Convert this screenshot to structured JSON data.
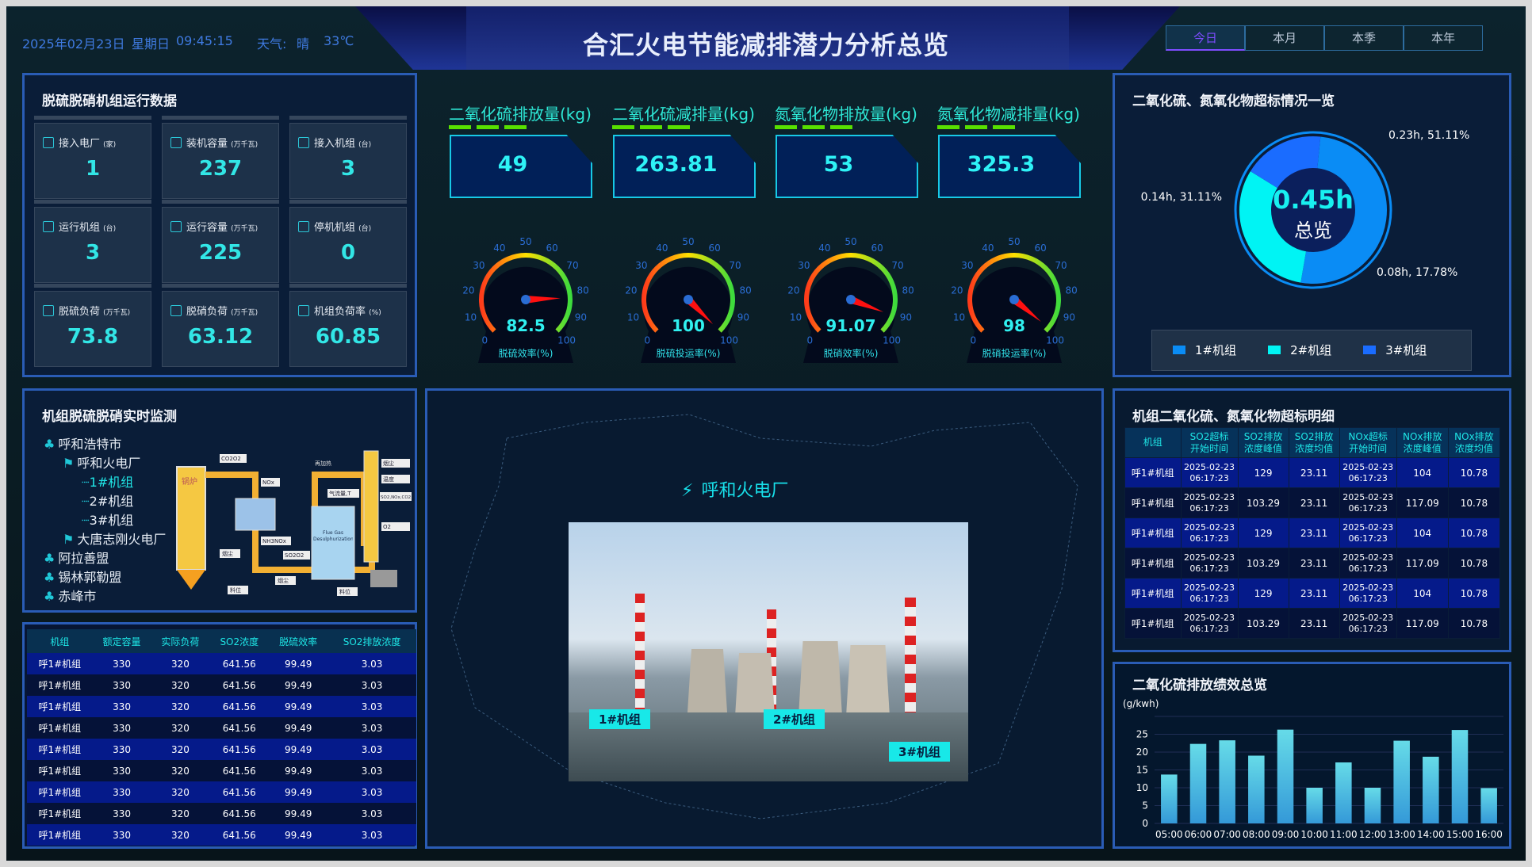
{
  "header": {
    "date": "2025年02月23日",
    "weekday": "星期日",
    "time": "09:45:15",
    "weather_label": "天气:",
    "weather": "晴",
    "temperature": "33℃",
    "title": "合汇火电节能减排潜力分析总览",
    "tabs": [
      {
        "label": "今日",
        "active": true
      },
      {
        "label": "本月"
      },
      {
        "label": "本季"
      },
      {
        "label": "本年"
      }
    ]
  },
  "unit_panel": {
    "title": "脱硫脱硝机组运行数据",
    "cards": [
      {
        "label": "接入电厂",
        "unit": "(家)",
        "value": "1",
        "icon": "plant-icon"
      },
      {
        "label": "装机容量",
        "unit": "(万千瓦)",
        "value": "237",
        "icon": "battery-icon"
      },
      {
        "label": "接入机组",
        "unit": "(台)",
        "value": "3",
        "icon": "generator-icon"
      },
      {
        "label": "运行机组",
        "unit": "(台)",
        "value": "3",
        "icon": "generator-icon"
      },
      {
        "label": "运行容量",
        "unit": "(万千瓦)",
        "value": "225",
        "icon": "battery-icon"
      },
      {
        "label": "停机机组",
        "unit": "(台)",
        "value": "0",
        "icon": "generator-off-icon"
      },
      {
        "label": "脱硫负荷",
        "unit": "(万千瓦)",
        "value": "73.8",
        "icon": "line-chart-icon"
      },
      {
        "label": "脱硝负荷",
        "unit": "(万千瓦)",
        "value": "63.12",
        "icon": "monitor-icon"
      },
      {
        "label": "机组负荷率",
        "unit": "(%)",
        "value": "60.85",
        "icon": "gauge-icon"
      }
    ]
  },
  "kpis": [
    {
      "label": "二氧化硫排放量(kg)",
      "value": "49"
    },
    {
      "label": "二氧化硫减排量(kg)",
      "value": "263.81"
    },
    {
      "label": "氮氧化物排放量(kg)",
      "value": "53"
    },
    {
      "label": "氮氧化物减排量(kg)",
      "value": "325.3"
    }
  ],
  "gauges": [
    {
      "label": "脱硫效率(%)",
      "value": 82.5,
      "display": "82.5"
    },
    {
      "label": "脱硫投运率(%)",
      "value": 100,
      "display": "100"
    },
    {
      "label": "脱硝效率(%)",
      "value": 91.07,
      "display": "91.07"
    },
    {
      "label": "脱硝投运率(%)",
      "value": 98,
      "display": "98"
    }
  ],
  "gauge_ticks": [
    "0",
    "10",
    "20",
    "30",
    "40",
    "50",
    "60",
    "70",
    "80",
    "90",
    "100"
  ],
  "monitor": {
    "title": "机组脱硫脱硝实时监测",
    "tree": [
      {
        "label": "呼和浩特市",
        "level": 0
      },
      {
        "label": "呼和火电厂",
        "level": 1
      },
      {
        "label": "1#机组",
        "level": 2,
        "selected": true
      },
      {
        "label": "2#机组",
        "level": 2
      },
      {
        "label": "3#机组",
        "level": 2
      },
      {
        "label": "大唐志刚火电厂",
        "level": 1
      },
      {
        "label": "阿拉善盟",
        "level": 0
      },
      {
        "label": "锡林郭勒盟",
        "level": 0
      },
      {
        "label": "赤峰市",
        "level": 0
      }
    ],
    "diagram": {
      "boiler": "锅炉",
      "labels": [
        "CO2O2",
        "NOx",
        "NH3NOx",
        "烟尘",
        "SO2O2",
        "烟尘",
        "料位",
        "料位",
        "再加热",
        "Flue Gas Desulphurization",
        "气流量,T",
        "烟尘",
        "温度",
        "SO2,NOx,CO2",
        "O2"
      ]
    }
  },
  "unit_table": {
    "columns": [
      "机组",
      "额定容量",
      "实际负荷",
      "SO2浓度",
      "脱硫效率",
      "SO2排放浓度"
    ],
    "rows": [
      [
        "呼1#机组",
        "330",
        "320",
        "641.56",
        "99.49",
        "3.03"
      ],
      [
        "呼1#机组",
        "330",
        "320",
        "641.56",
        "99.49",
        "3.03"
      ],
      [
        "呼1#机组",
        "330",
        "320",
        "641.56",
        "99.49",
        "3.03"
      ],
      [
        "呼1#机组",
        "330",
        "320",
        "641.56",
        "99.49",
        "3.03"
      ],
      [
        "呼1#机组",
        "330",
        "320",
        "641.56",
        "99.49",
        "3.03"
      ],
      [
        "呼1#机组",
        "330",
        "320",
        "641.56",
        "99.49",
        "3.03"
      ],
      [
        "呼1#机组",
        "330",
        "320",
        "641.56",
        "99.49",
        "3.03"
      ],
      [
        "呼1#机组",
        "330",
        "320",
        "641.56",
        "99.49",
        "3.03"
      ],
      [
        "呼1#机组",
        "330",
        "320",
        "641.56",
        "99.49",
        "3.03"
      ]
    ]
  },
  "map": {
    "plant": "呼和火电厂",
    "units": [
      "1#机组",
      "2#机组",
      "3#机组"
    ]
  },
  "donut": {
    "title": "二氧化硫、氮氧化物超标情况一览",
    "total": "0.45h",
    "center_label": "总览",
    "slices": [
      {
        "name": "1#机组",
        "value": 0.23,
        "label": "0.23h, 51.11%",
        "color": "#0a8cf5"
      },
      {
        "name": "2#机组",
        "value": 0.14,
        "label": "0.14h, 31.11%",
        "color": "#00f4f4"
      },
      {
        "name": "3#机组",
        "value": 0.08,
        "label": "0.08h, 17.78%",
        "color": "#1a6cff"
      }
    ]
  },
  "exceed_table": {
    "title": "机组二氧化硫、氮氧化物超标明细",
    "columns": [
      [
        "机组"
      ],
      [
        "SO2超标",
        "开始时间"
      ],
      [
        "SO2排放",
        "浓度峰值"
      ],
      [
        "SO2排放",
        "浓度均值"
      ],
      [
        "NOx超标",
        "开始时间"
      ],
      [
        "NOx排放",
        "浓度峰值"
      ],
      [
        "NOx排放",
        "浓度均值"
      ]
    ],
    "rows": [
      [
        "呼1#机组",
        "2025-02-23 06:17:23",
        "129",
        "23.11",
        "2025-02-23 06:17:23",
        "104",
        "10.78"
      ],
      [
        "呼1#机组",
        "2025-02-23 06:17:23",
        "103.29",
        "23.11",
        "2025-02-23 06:17:23",
        "117.09",
        "10.78"
      ],
      [
        "呼1#机组",
        "2025-02-23 06:17:23",
        "129",
        "23.11",
        "2025-02-23 06:17:23",
        "104",
        "10.78"
      ],
      [
        "呼1#机组",
        "2025-02-23 06:17:23",
        "103.29",
        "23.11",
        "2025-02-23 06:17:23",
        "117.09",
        "10.78"
      ],
      [
        "呼1#机组",
        "2025-02-23 06:17:23",
        "129",
        "23.11",
        "2025-02-23 06:17:23",
        "104",
        "10.78"
      ],
      [
        "呼1#机组",
        "2025-02-23 06:17:23",
        "103.29",
        "23.11",
        "2025-02-23 06:17:23",
        "117.09",
        "10.78"
      ]
    ]
  },
  "chart_data": {
    "type": "bar",
    "title": "二氧化硫排放绩效总览",
    "ylabel": "(g/kwh)",
    "categories": [
      "05:00",
      "06:00",
      "07:00",
      "08:00",
      "09:00",
      "10:00",
      "11:00",
      "12:00",
      "13:00",
      "14:00",
      "15:00",
      "16:00"
    ],
    "values": [
      13.7,
      22.3,
      23.3,
      19,
      26.3,
      10,
      17.1,
      10,
      23.2,
      18.7,
      26.2,
      9.9
    ],
    "ylim": [
      0,
      30
    ],
    "yticks": [
      0,
      5,
      10,
      15,
      20,
      25
    ],
    "grid": true,
    "colors": [
      "#66dbe8",
      "#3499d8"
    ]
  }
}
